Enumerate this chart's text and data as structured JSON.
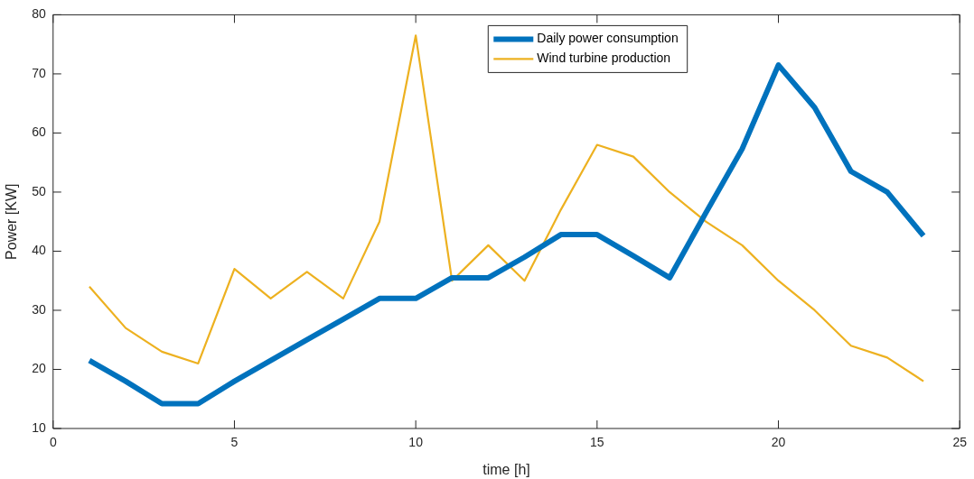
{
  "chart_data": {
    "type": "line",
    "xlabel": "time [h]",
    "ylabel": "Power [KW]",
    "x": [
      1,
      2,
      3,
      4,
      5,
      6,
      7,
      8,
      9,
      10,
      11,
      12,
      13,
      14,
      15,
      16,
      17,
      18,
      19,
      20,
      21,
      22,
      23,
      24
    ],
    "series": [
      {
        "name": "Daily power consumption",
        "color": "#0072bd",
        "values": [
          21.5,
          18,
          14.2,
          14.2,
          18,
          21.5,
          25,
          28.5,
          32,
          32,
          35.5,
          35.5,
          39,
          42.8,
          42.8,
          39.2,
          35.5,
          46.5,
          57.3,
          71.5,
          64.3,
          53.5,
          50,
          42.6
        ]
      },
      {
        "name": "Wind turbine production",
        "color": "#edb120",
        "values": [
          34,
          27,
          23,
          21,
          37,
          32,
          36.5,
          32,
          45,
          76.5,
          35,
          41,
          35,
          47,
          58,
          56,
          50,
          45,
          41,
          35,
          30,
          24,
          22,
          18
        ]
      }
    ],
    "xlim": [
      0,
      25
    ],
    "xticks": [
      0,
      5,
      10,
      15,
      20,
      25
    ],
    "ylim": [
      10,
      80
    ],
    "yticks": [
      10,
      20,
      30,
      40,
      50,
      60,
      70,
      80
    ],
    "grid": false,
    "legend": "top",
    "marker": "none",
    "line_style": "solid"
  }
}
